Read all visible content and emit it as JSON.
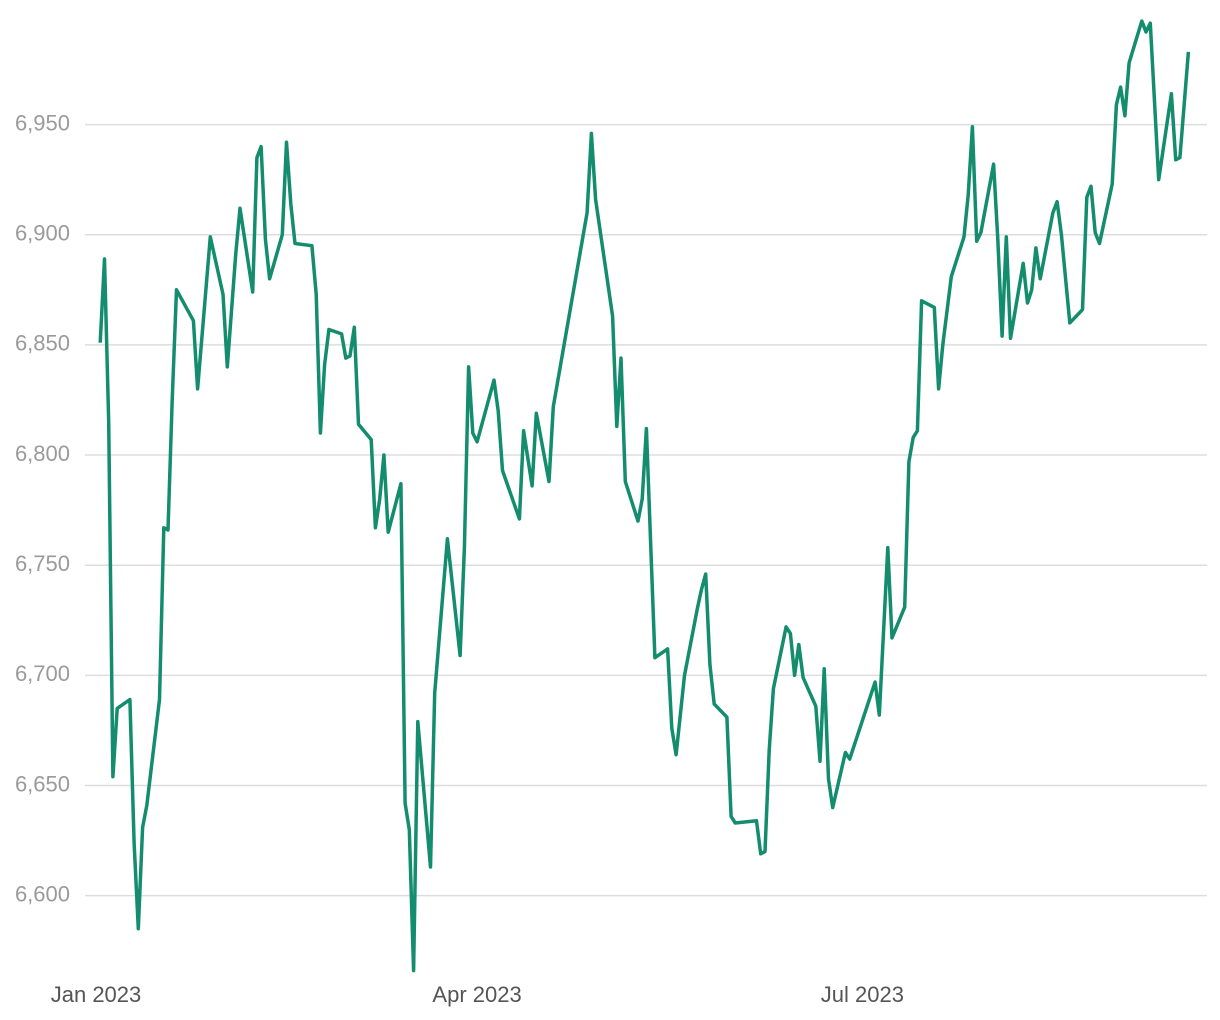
{
  "chart_data": {
    "type": "line",
    "x": [
      1,
      2,
      3,
      4,
      5,
      8,
      9,
      10,
      11,
      12,
      15,
      16,
      17,
      18,
      19,
      23,
      24,
      27,
      30,
      31,
      33,
      34,
      37,
      38,
      39,
      40,
      41,
      44,
      45,
      46,
      47,
      51,
      52,
      53,
      54,
      55,
      58,
      59,
      60,
      61,
      62,
      65,
      66,
      67,
      68,
      69,
      72,
      73,
      74,
      75,
      76,
      79,
      80,
      83,
      86,
      87,
      88,
      89,
      90,
      94,
      95,
      96,
      100,
      101,
      103,
      104,
      107,
      108,
      116,
      117,
      118,
      122,
      123,
      124,
      125,
      128,
      129,
      130,
      132,
      135,
      136,
      137,
      139,
      142,
      143,
      144,
      145,
      146,
      149,
      150,
      151,
      156,
      157,
      158,
      159,
      160,
      163,
      164,
      165,
      166,
      167,
      170,
      171,
      172,
      173,
      174,
      177,
      178,
      184,
      185,
      187,
      188,
      191,
      192,
      193,
      194,
      195,
      198,
      199,
      200,
      202,
      205,
      206,
      207,
      208,
      209,
      212,
      213,
      214,
      215,
      216,
      219,
      220,
      221,
      222,
      223,
      226,
      227,
      228,
      230,
      233,
      234,
      235,
      236,
      237,
      240,
      241,
      242,
      243,
      244,
      247,
      248,
      249,
      251,
      254,
      255,
      256,
      258
    ],
    "values": [
      6851,
      6889,
      6815,
      6654,
      6685,
      6689,
      6624,
      6585,
      6631,
      6641,
      6689,
      6767,
      6766,
      6825,
      6875,
      6861,
      6830,
      6899,
      6873,
      6840,
      6891,
      6912,
      6874,
      6935,
      6940,
      6898,
      6880,
      6900,
      6942,
      6914,
      6896,
      6895,
      6873,
      6810,
      6841,
      6857,
      6855,
      6844,
      6845,
      6858,
      6814,
      6807,
      6767,
      6780,
      6800,
      6765,
      6787,
      6642,
      6630,
      6566,
      6679,
      6613,
      6692,
      6762,
      6709,
      6758,
      6840,
      6810,
      6806,
      6834,
      6820,
      6793,
      6771,
      6811,
      6786,
      6819,
      6788,
      6822,
      6910,
      6946,
      6916,
      6863,
      6813,
      6844,
      6788,
      6770,
      6780,
      6812,
      6708,
      6712,
      6676,
      6664,
      6700,
      6730,
      6739,
      6746,
      6705,
      6687,
      6681,
      6636,
      6633,
      6634,
      6619,
      6620,
      6666,
      6694,
      6722,
      6719,
      6700,
      6714,
      6699,
      6686,
      6661,
      6703,
      6653,
      6640,
      6665,
      6662,
      6697,
      6682,
      6758,
      6717,
      6731,
      6797,
      6808,
      6811,
      6870,
      6867,
      6830,
      6850,
      6881,
      6899,
      6918,
      6949,
      6897,
      6901,
      6932,
      6898,
      6854,
      6899,
      6853,
      6887,
      6869,
      6875,
      6894,
      6880,
      6910,
      6915,
      6900,
      6860,
      6866,
      6917,
      6922,
      6901,
      6896,
      6923,
      6959,
      6967,
      6954,
      6978,
      6997,
      6992,
      6996,
      6925,
      6964,
      6934,
      6935,
      6983
    ],
    "color": "#138d6e",
    "xlim": [
      -2.6,
      262.4
    ],
    "xticks": [
      {
        "value": 0,
        "label": "Jan 2023"
      },
      {
        "value": 90,
        "label": "Apr 2023"
      },
      {
        "value": 181,
        "label": "Jul 2023"
      }
    ],
    "ylim": [
      6564,
      7002
    ],
    "yticks": [
      {
        "value": 6600,
        "label": "6,600"
      },
      {
        "value": 6650,
        "label": "6,650"
      },
      {
        "value": 6700,
        "label": "6,700"
      },
      {
        "value": 6750,
        "label": "6,750"
      },
      {
        "value": 6800,
        "label": "6,800"
      },
      {
        "value": 6850,
        "label": "6,850"
      },
      {
        "value": 6900,
        "label": "6,900"
      },
      {
        "value": 6950,
        "label": "6,950"
      }
    ],
    "grid": true
  }
}
